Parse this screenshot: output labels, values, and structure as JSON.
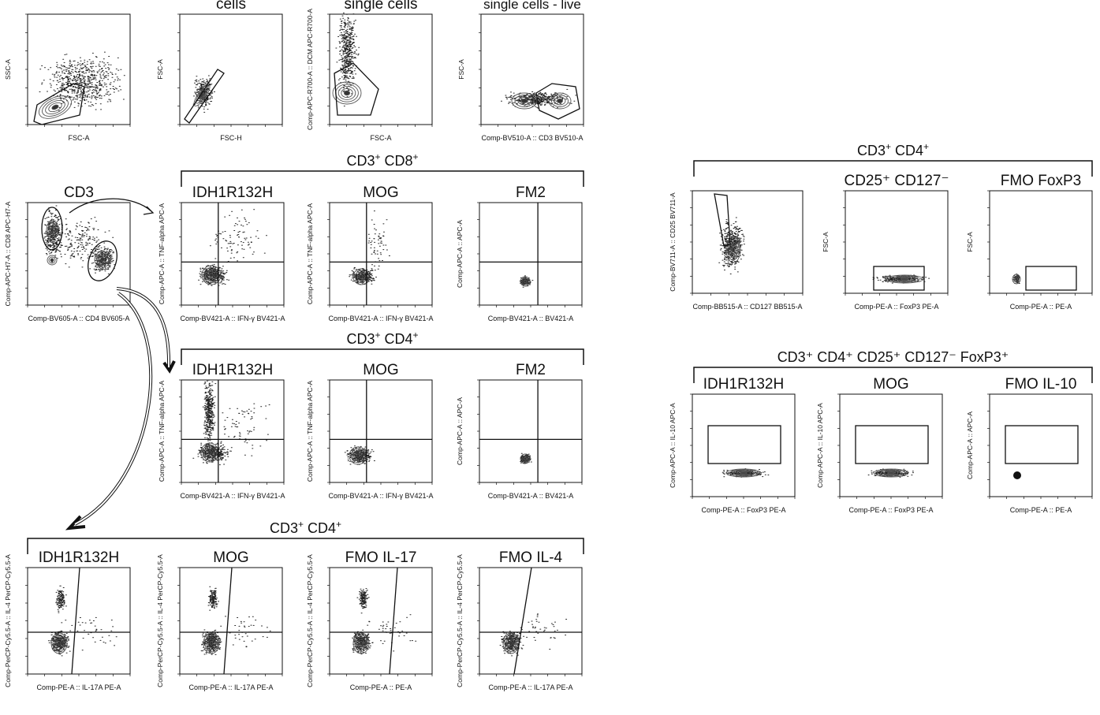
{
  "row1": {
    "panels": [
      {
        "title": "",
        "xlabel": "FSC-A",
        "ylabel": "SSC-A"
      },
      {
        "title": "cells",
        "xlabel": "FSC-H",
        "ylabel": "FSC-A"
      },
      {
        "title": "single cells",
        "xlabel": "FSC-A",
        "ylabel": "Comp-APC-R700-A :: DCM APC-R700-A"
      },
      {
        "title": "single cells - live",
        "xlabel": "Comp-BV510-A :: CD3 BV510-A",
        "ylabel": "FSC-A"
      }
    ]
  },
  "cd3_panel": {
    "title": "CD3",
    "xlabel": "Comp-BV605-A :: CD4 BV605-A",
    "ylabel": "Comp-APC-H7-A :: CD8 APC-H7-A"
  },
  "group_cd8": {
    "bracket_base": "CD3",
    "bracket_sup1": "+",
    "bracket_mid": " CD8",
    "bracket_sup2": "+",
    "panels": [
      {
        "title": "IDH1R132H",
        "xlabel": "Comp-BV421-A :: IFN-γ BV421-A",
        "ylabel": "Comp-APC-A :: TNF-alpha APC-A"
      },
      {
        "title": "MOG",
        "xlabel": "Comp-BV421-A :: IFN-γ BV421-A",
        "ylabel": "Comp-APC-A :: TNF-alpha APC-A"
      },
      {
        "title": "FM2",
        "xlabel": "Comp-BV421-A :: BV421-A",
        "ylabel": "Comp-APC-A :: APC-A"
      }
    ]
  },
  "group_cd4": {
    "bracket_base": "CD3",
    "bracket_sup1": "+",
    "bracket_mid": " CD4",
    "bracket_sup2": "+",
    "panels": [
      {
        "title": "IDH1R132H",
        "xlabel": "Comp-BV421-A :: IFN-γ BV421-A",
        "ylabel": "Comp-APC-A :: TNF-alpha APC-A"
      },
      {
        "title": "MOG",
        "xlabel": "Comp-BV421-A :: IFN-γ BV421-A",
        "ylabel": "Comp-APC-A :: TNF-alpha APC-A"
      },
      {
        "title": "FM2",
        "xlabel": "Comp-BV421-A :: BV421-A",
        "ylabel": "Comp-APC-A :: APC-A"
      }
    ]
  },
  "group_il": {
    "bracket_base": "CD3",
    "bracket_sup1": "+",
    "bracket_mid": " CD4",
    "bracket_sup2": "+",
    "panels": [
      {
        "title": "IDH1R132H",
        "xlabel": "Comp-PE-A :: IL-17A PE-A",
        "ylabel": "Comp-PerCP-Cy5.5-A :: IL-4 PerCP-Cy5.5-A"
      },
      {
        "title": "MOG",
        "xlabel": "Comp-PE-A :: IL-17A PE-A",
        "ylabel": "Comp-PerCP-Cy5.5-A :: IL-4 PerCP-Cy5.5-A"
      },
      {
        "title": "FMO IL-17",
        "xlabel": "Comp-PE-A :: PE-A",
        "ylabel": "Comp-PerCP-Cy5.5-A :: IL-4 PerCP-Cy5.5-A"
      },
      {
        "title": "FMO IL-4",
        "xlabel": "Comp-PE-A :: IL-17A PE-A",
        "ylabel": "Comp-PerCP-Cy5.5-A :: IL-4 PerCP-Cy5.5-A"
      }
    ]
  },
  "group_treg": {
    "bracket_base": "CD3",
    "bracket_sup1": "+",
    "bracket_mid": " CD4",
    "bracket_sup2": "+",
    "panels": [
      {
        "title": "",
        "xlabel": "Comp-BB515-A :: CD127 BB515-A",
        "ylabel": "Comp-BV711-A :: CD25 BV711-A"
      },
      {
        "title": "CD25⁺ CD127⁻",
        "xlabel": "Comp-PE-A :: FoxP3 PE-A",
        "ylabel": "FSC-A"
      },
      {
        "title": "FMO FoxP3",
        "xlabel": "Comp-PE-A :: PE-A",
        "ylabel": "FSC-A"
      }
    ]
  },
  "group_il10": {
    "bracket_text": "CD3⁺ CD4⁺ CD25⁺ CD127⁻ FoxP3⁺",
    "panels": [
      {
        "title": "IDH1R132H",
        "xlabel": "Comp-PE-A :: FoxP3 PE-A",
        "ylabel": "Comp-APC-A :: IL-10 APC-A"
      },
      {
        "title": "MOG",
        "xlabel": "Comp-PE-A :: FoxP3 PE-A",
        "ylabel": "Comp-APC-A :: IL-10 APC-A"
      },
      {
        "title": "FMO IL-10",
        "xlabel": "Comp-PE-A :: PE-A",
        "ylabel": "Comp-APC-A :: APC-A"
      }
    ]
  },
  "colors": {
    "ink": "#111111",
    "contour": "#555555",
    "dots": "#222222"
  }
}
